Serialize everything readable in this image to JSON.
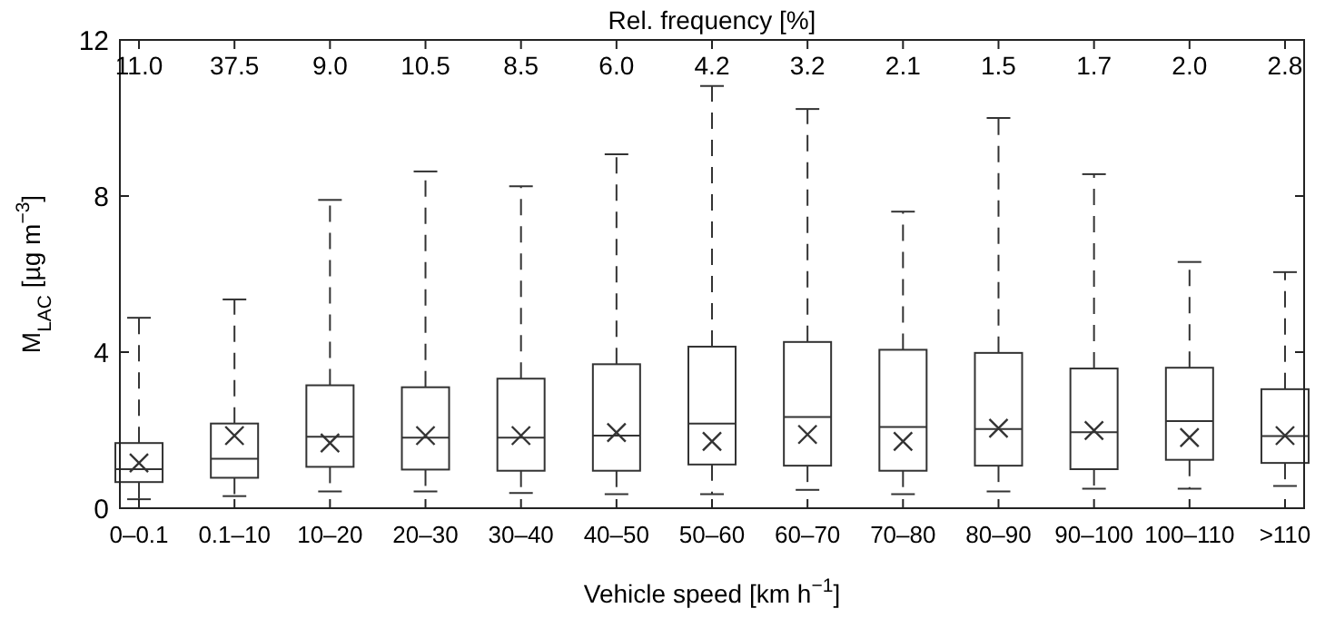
{
  "chart_data": {
    "type": "box",
    "xlabel": "Vehicle speed [km h$^{−1}$]",
    "ylabel": "M$_{LAC}$ [µg m$^{−3}$]",
    "categories": [
      "0–0.1",
      "0.1–10",
      "10–20",
      "20–30",
      "30–40",
      "40–50",
      "50–60",
      "60–70",
      "70–80",
      "80–90",
      "90–100",
      "100–110",
      ">110"
    ],
    "boxes": [
      {
        "low": 0.23,
        "q1": 0.67,
        "median": 1.0,
        "q3": 1.67,
        "high": 4.88,
        "mean": 1.16
      },
      {
        "low": 0.31,
        "q1": 0.78,
        "median": 1.27,
        "q3": 2.17,
        "high": 5.35,
        "mean": 1.86
      },
      {
        "low": 0.43,
        "q1": 1.06,
        "median": 1.83,
        "q3": 3.15,
        "high": 7.9,
        "mean": 1.67
      },
      {
        "low": 0.43,
        "q1": 0.99,
        "median": 1.81,
        "q3": 3.1,
        "high": 8.63,
        "mean": 1.86
      },
      {
        "low": 0.39,
        "q1": 0.96,
        "median": 1.81,
        "q3": 3.32,
        "high": 8.25,
        "mean": 1.86
      },
      {
        "low": 0.36,
        "q1": 0.96,
        "median": 1.86,
        "q3": 3.69,
        "high": 9.07,
        "mean": 1.94
      },
      {
        "low": 0.36,
        "q1": 1.12,
        "median": 2.17,
        "q3": 4.14,
        "high": 10.82,
        "mean": 1.71
      },
      {
        "low": 0.47,
        "q1": 1.09,
        "median": 2.34,
        "q3": 4.26,
        "high": 10.23,
        "mean": 1.89
      },
      {
        "low": 0.36,
        "q1": 0.96,
        "median": 2.08,
        "q3": 4.06,
        "high": 7.6,
        "mean": 1.71
      },
      {
        "low": 0.43,
        "q1": 1.09,
        "median": 2.03,
        "q3": 3.98,
        "high": 10.0,
        "mean": 2.05
      },
      {
        "low": 0.5,
        "q1": 1.0,
        "median": 1.95,
        "q3": 3.58,
        "high": 8.56,
        "mean": 1.99
      },
      {
        "low": 0.5,
        "q1": 1.24,
        "median": 2.23,
        "q3": 3.6,
        "high": 6.31,
        "mean": 1.81
      },
      {
        "low": 0.57,
        "q1": 1.16,
        "median": 1.85,
        "q3": 3.05,
        "high": 6.05,
        "mean": 1.86
      }
    ],
    "color": "#333333",
    "marker": "cross",
    "ylim": [
      0,
      12
    ],
    "yticks": [
      0,
      4,
      8,
      12
    ],
    "grid": false,
    "annotations": [
      "Rel. frequency [%]",
      "11.0",
      "37.5",
      "9.0",
      "10.5",
      "8.5",
      "6.0",
      "4.2",
      "3.2",
      "2.1",
      "1.5",
      "1.7",
      "2.0",
      "2.8"
    ]
  }
}
